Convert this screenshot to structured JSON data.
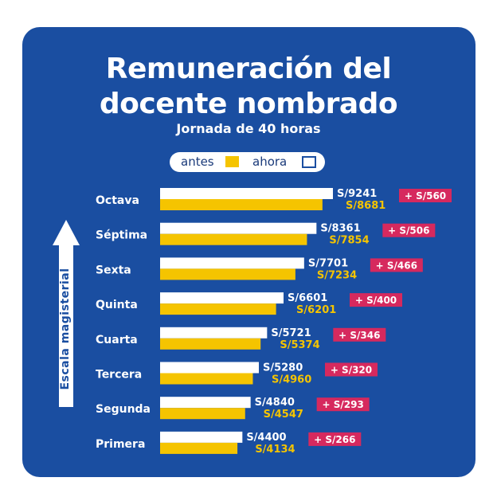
{
  "title_line1": "Remuneración del",
  "title_line2": "docente nombrado",
  "subtitle": "Jornada de 40 horas",
  "legend": {
    "antes": "antes",
    "ahora": "ahora"
  },
  "colors": {
    "background": "#1a4ea1",
    "antes": "#f5c400",
    "ahora": "#ffffff",
    "increase_badge": "#d6295e",
    "antes_label": "#f5c400",
    "ahora_label": "#ffffff"
  },
  "chart_data": {
    "type": "bar",
    "orientation": "horizontal",
    "ylabel": "Escala magisterial",
    "categories": [
      "Octava",
      "Séptima",
      "Sexta",
      "Quinta",
      "Cuarta",
      "Tercera",
      "Segunda",
      "Primera"
    ],
    "series": [
      {
        "name": "ahora",
        "values": [
          9241,
          8361,
          7701,
          6601,
          5721,
          5280,
          4840,
          4400
        ]
      },
      {
        "name": "antes",
        "values": [
          8681,
          7854,
          7234,
          6201,
          5374,
          4960,
          4547,
          4134
        ]
      }
    ],
    "ahora_labels": [
      "S/9241",
      "S/8361",
      "S/7701",
      "S/6601",
      "S/5721",
      "S/5280",
      "S/4840",
      "S/4400"
    ],
    "antes_labels": [
      "S/8681",
      "S/7854",
      "S/7234",
      "S/6201",
      "S/5374",
      "S/4960",
      "S/4547",
      "S/4134"
    ],
    "increase_labels": [
      "+ S/560",
      "+ S/506",
      "+ S/466",
      "+ S/400",
      "+ S/346",
      "+ S/320",
      "+ S/293",
      "+ S/266"
    ],
    "grid": false,
    "legend_position": "top-center"
  }
}
